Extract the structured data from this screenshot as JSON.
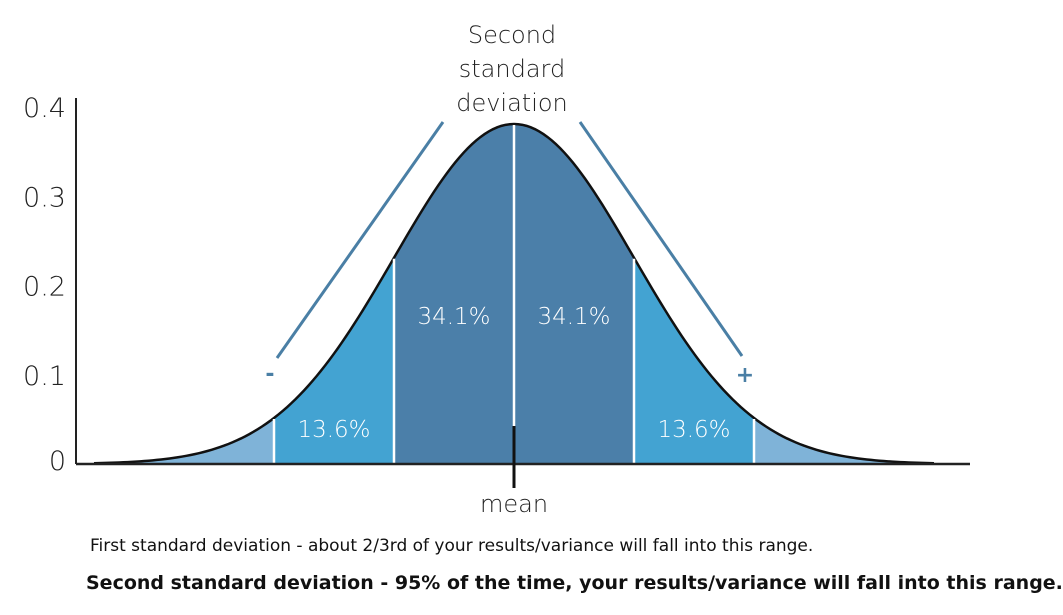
{
  "chart_data": {
    "type": "area",
    "title": "",
    "xlabel": "",
    "ylabel": "",
    "ylim": [
      0,
      0.4
    ],
    "y_ticks": [
      "0",
      "0.1",
      "0.2",
      "0.3",
      "0.4"
    ],
    "x_range_sd": [
      -3.5,
      3.5
    ],
    "mean_label": "mean",
    "segments": [
      {
        "from_sd": -3.5,
        "to_sd": -2,
        "label": "",
        "color": "#7fb3d8"
      },
      {
        "from_sd": -2,
        "to_sd": -1,
        "label": "13.6%",
        "color": "#43a3d2"
      },
      {
        "from_sd": -1,
        "to_sd": 0,
        "label": "34.1%",
        "color": "#4b7fa9"
      },
      {
        "from_sd": 0,
        "to_sd": 1,
        "label": "34.1%",
        "color": "#4b7fa9"
      },
      {
        "from_sd": 1,
        "to_sd": 2,
        "label": "13.6%",
        "color": "#43a3d2"
      },
      {
        "from_sd": 2,
        "to_sd": 3.5,
        "label": "",
        "color": "#7fb3d8"
      }
    ],
    "callout": {
      "lines": [
        "Second",
        "standard",
        "deviation"
      ],
      "minus": "-",
      "plus": "+",
      "color": "#4a7fa5"
    },
    "grid": false
  },
  "captions": {
    "first": "First standard deviation - about 2/3rd of your results/variance will fall into this range.",
    "second": "Second standard deviation - 95% of the time, your results/variance will fall into this range."
  }
}
